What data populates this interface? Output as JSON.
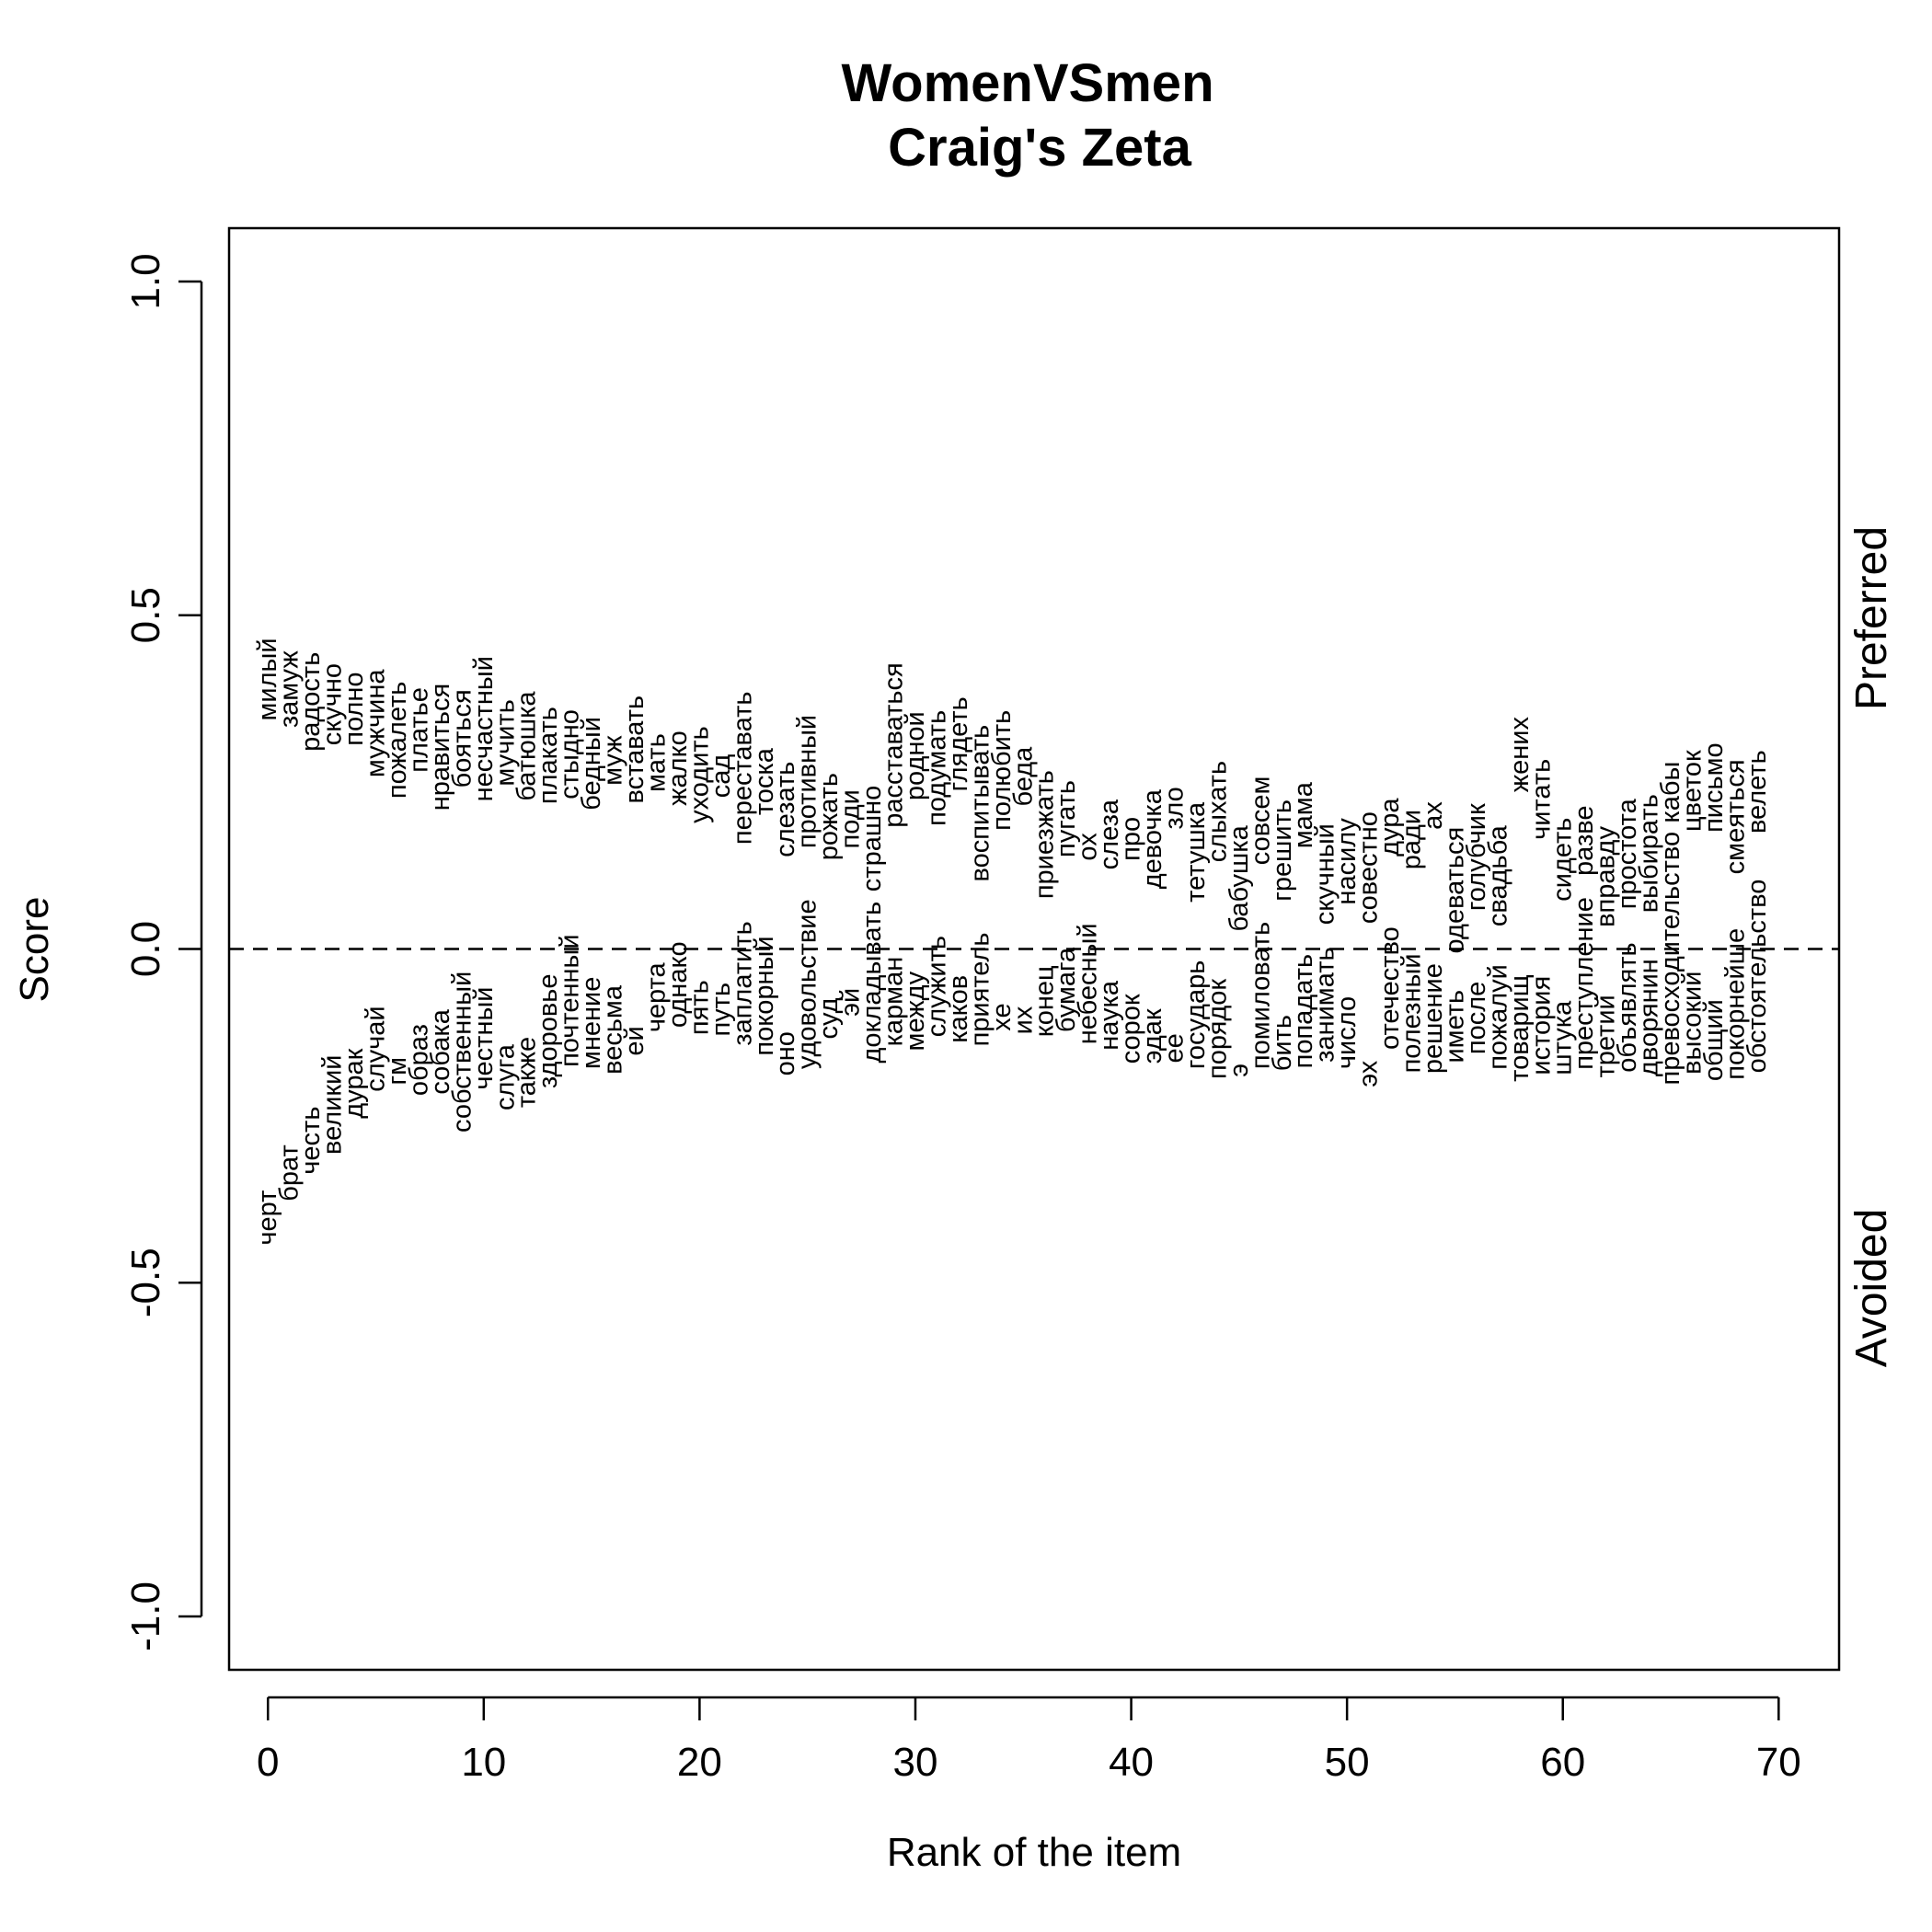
{
  "chart_data": {
    "type": "scatter",
    "title": "WomenVSmen",
    "subtitle": "Craig's Zeta",
    "xlabel": "Rank of the item",
    "ylabel": "Score",
    "right_labels": {
      "top": "Preferred",
      "bottom": "Avoided"
    },
    "xlim": [
      -1.8,
      72.8
    ],
    "ylim": [
      -1.08,
      1.08
    ],
    "x_ticks": [
      0,
      10,
      20,
      30,
      40,
      50,
      60,
      70
    ],
    "x_tick_labels": [
      "0",
      "10",
      "20",
      "30",
      "40",
      "50",
      "60",
      "70"
    ],
    "y_ticks": [
      -1.0,
      -0.5,
      0.0,
      0.5,
      1.0
    ],
    "y_tick_labels": [
      "-1.0",
      "-0.5",
      "0.0",
      "0.5",
      "1.0"
    ],
    "reference_line": {
      "y": 0,
      "style": "dashed"
    },
    "grid": false,
    "series": [
      {
        "name": "Preferred",
        "words": [
          "милый",
          "замуж",
          "радость",
          "скучно",
          "полно",
          "мужчина",
          "пожалеть",
          "платье",
          "нравиться",
          "бояться",
          "несчастный",
          "мучить",
          "батюшка",
          "плакать",
          "стыдно",
          "бедный",
          "муж",
          "вставать",
          "мать",
          "жалко",
          "уходить",
          "сад",
          "переставать",
          "тоска",
          "слезать",
          "противный",
          "рожать",
          "поди",
          "страшно",
          "расставаться",
          "родной",
          "подумать",
          "глядеть",
          "воспитывать",
          "полюбить",
          "беда",
          "приезжать",
          "пугать",
          "ох",
          "слеза",
          "про",
          "девочка",
          "зло",
          "тетушка",
          "слыхать",
          "бабушка",
          "совсем",
          "грешить",
          "мама",
          "скучный",
          "насилу",
          "совестно",
          "дура",
          "ради",
          "ах",
          "одеваться",
          "голубчик",
          "свадьба",
          "жених",
          "читать",
          "сидеть",
          "разве",
          "вправду",
          "простота",
          "выбирать",
          "кабы",
          "цветок",
          "письмо",
          "смеяться",
          "велеть"
        ],
        "x": [
          0,
          1,
          2,
          3,
          4,
          5,
          6,
          7,
          8,
          9,
          10,
          11,
          12,
          13,
          14,
          15,
          16,
          17,
          18,
          19,
          20,
          21,
          22,
          23,
          24,
          25,
          26,
          27,
          28,
          29,
          30,
          31,
          32,
          33,
          34,
          35,
          36,
          37,
          38,
          39,
          40,
          41,
          42,
          43,
          44,
          45,
          46,
          47,
          48,
          49,
          50,
          51,
          52,
          53,
          54,
          55,
          56,
          57,
          58,
          59,
          60,
          61,
          62,
          63,
          64,
          65,
          66,
          67,
          68,
          69
        ],
        "y": [
          0.466,
          0.447,
          0.445,
          0.428,
          0.415,
          0.419,
          0.401,
          0.392,
          0.398,
          0.389,
          0.439,
          0.374,
          0.386,
          0.363,
          0.359,
          0.348,
          0.32,
          0.38,
          0.323,
          0.327,
          0.334,
          0.292,
          0.386,
          0.301,
          0.281,
          0.351,
          0.264,
          0.239,
          0.245,
          0.429,
          0.356,
          0.358,
          0.378,
          0.336,
          0.358,
          0.303,
          0.268,
          0.253,
          0.174,
          0.224,
          0.198,
          0.239,
          0.243,
          0.22,
          0.282,
          0.185,
          0.259,
          0.224,
          0.25,
          0.188,
          0.196,
          0.206,
          0.226,
          0.209,
          0.221,
          0.183,
          0.218,
          0.185,
          0.348,
          0.285,
          0.197,
          0.215,
          0.184,
          0.225,
          0.232,
          0.281,
          0.298,
          0.309,
          0.284,
          0.298
        ],
        "label_anchor": "end"
      },
      {
        "name": "Avoided",
        "words": [
          "черт",
          "брат",
          "честь",
          "великий",
          "дурак",
          "случай",
          "гм",
          "образ",
          "собака",
          "собственный",
          "честный",
          "слуга",
          "также",
          "здоровье",
          "почтенный",
          "мнение",
          "весьма",
          "ей",
          "черта",
          "однако",
          "пять",
          "путь",
          "заплатить",
          "покорный",
          "оно",
          "удовольствие",
          "суд",
          "эй",
          "докладывать",
          "карман",
          "между",
          "служить",
          "каков",
          "приятель",
          "хе",
          "их",
          "конец",
          "бумага",
          "небесный",
          "наука",
          "сорок",
          "эдак",
          "ее",
          "государь",
          "порядок",
          "э",
          "помиловать",
          "бить",
          "попадать",
          "занимать",
          "число",
          "эх",
          "отечество",
          "полезный",
          "решение",
          "иметь",
          "после",
          "пожалуй",
          "товарищ",
          "история",
          "штука",
          "преступление",
          "третий",
          "объявлять",
          "дворянин",
          "превосходительство",
          "высокий",
          "общий",
          "покорнейше",
          "обстоятельство"
        ],
        "x": [
          0,
          1,
          2,
          3,
          4,
          5,
          6,
          7,
          8,
          9,
          10,
          11,
          12,
          13,
          14,
          15,
          16,
          17,
          18,
          19,
          20,
          21,
          22,
          23,
          24,
          25,
          26,
          27,
          28,
          29,
          30,
          31,
          32,
          33,
          34,
          35,
          36,
          37,
          38,
          39,
          40,
          41,
          42,
          43,
          44,
          45,
          46,
          47,
          48,
          49,
          50,
          51,
          52,
          53,
          54,
          55,
          56,
          57,
          58,
          59,
          60,
          61,
          62,
          63,
          64,
          65,
          66,
          67,
          68,
          69
        ],
        "y": [
          -0.444,
          -0.378,
          -0.338,
          -0.308,
          -0.254,
          -0.214,
          -0.204,
          -0.22,
          -0.218,
          -0.275,
          -0.211,
          -0.242,
          -0.238,
          -0.209,
          -0.177,
          -0.18,
          -0.188,
          -0.16,
          -0.125,
          -0.118,
          -0.129,
          -0.131,
          -0.145,
          -0.16,
          -0.19,
          -0.18,
          -0.135,
          -0.101,
          -0.171,
          -0.146,
          -0.153,
          -0.132,
          -0.141,
          -0.146,
          -0.123,
          -0.128,
          -0.132,
          -0.125,
          -0.143,
          -0.152,
          -0.172,
          -0.172,
          -0.171,
          -0.18,
          -0.195,
          -0.192,
          -0.18,
          -0.183,
          -0.179,
          -0.17,
          -0.18,
          -0.207,
          -0.151,
          -0.186,
          -0.187,
          -0.171,
          -0.158,
          -0.181,
          -0.199,
          -0.189,
          -0.189,
          -0.181,
          -0.193,
          -0.185,
          -0.191,
          -0.204,
          -0.188,
          -0.198,
          -0.196,
          -0.186
        ],
        "label_anchor": "start"
      }
    ]
  }
}
